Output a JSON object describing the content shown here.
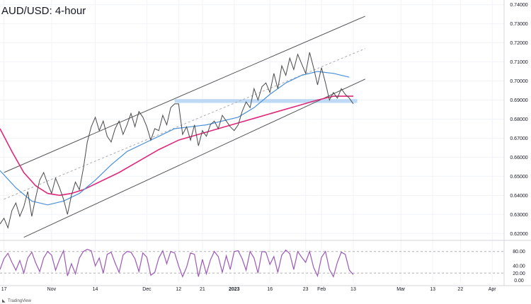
{
  "chart_data": {
    "type": "line",
    "title": "AUD/USD: 4-hour",
    "watermark": "TradingView",
    "colors": {
      "price": "#4a4a4a",
      "ma_fast": "#4a90d9",
      "ma_slow": "#e0287a",
      "channel": "#555555",
      "zone": "#a9cdf2",
      "oscillator": "#9b59b6",
      "midline": "#b0b0b0"
    },
    "price_axis": {
      "range": [
        0.6175,
        0.7425
      ],
      "ticks": [
        {
          "value": 0.74,
          "label": "0.74000"
        },
        {
          "value": 0.73,
          "label": "0.73000"
        },
        {
          "value": 0.72,
          "label": "0.72000"
        },
        {
          "value": 0.71,
          "label": "0.71000"
        },
        {
          "value": 0.7,
          "label": "0.70000"
        },
        {
          "value": 0.69,
          "label": "0.69000"
        },
        {
          "value": 0.68,
          "label": "0.68000"
        },
        {
          "value": 0.67,
          "label": "0.67000"
        },
        {
          "value": 0.66,
          "label": "0.66000"
        },
        {
          "value": 0.65,
          "label": "0.65000"
        },
        {
          "value": 0.64,
          "label": "0.64000"
        },
        {
          "value": 0.63,
          "label": "0.63000"
        },
        {
          "value": 0.62,
          "label": "0.62000"
        }
      ]
    },
    "oscillator_axis": {
      "range": [
        -5,
        105
      ],
      "ticks": [
        {
          "value": 80,
          "label": "80.00"
        },
        {
          "value": 40,
          "label": "40.00"
        },
        {
          "value": 20,
          "label": "20.00"
        },
        {
          "value": 0,
          "label": "0.00"
        }
      ],
      "bands": [
        80,
        20
      ]
    },
    "x_axis": {
      "range": [
        0,
        127
      ],
      "ticks": [
        {
          "x": 1,
          "label": "17",
          "bold": false
        },
        {
          "x": 13,
          "label": "Nov",
          "bold": false
        },
        {
          "x": 24,
          "label": "14",
          "bold": false
        },
        {
          "x": 37,
          "label": "Dec",
          "bold": false
        },
        {
          "x": 45,
          "label": "12",
          "bold": false
        },
        {
          "x": 51,
          "label": "21",
          "bold": false
        },
        {
          "x": 59,
          "label": "2023",
          "bold": true
        },
        {
          "x": 68,
          "label": "16",
          "bold": false
        },
        {
          "x": 77,
          "label": "23",
          "bold": false
        },
        {
          "x": 81,
          "label": "Feb",
          "bold": false
        },
        {
          "x": 89,
          "label": "13",
          "bold": false
        },
        {
          "x": 101,
          "label": "Mar",
          "bold": false
        },
        {
          "x": 109,
          "label": "13",
          "bold": false
        },
        {
          "x": 116,
          "label": "22",
          "bold": false
        },
        {
          "x": 124,
          "label": "Apr",
          "bold": false
        }
      ]
    },
    "price": [
      [
        0,
        0.625
      ],
      [
        1,
        0.628
      ],
      [
        2,
        0.623
      ],
      [
        3,
        0.632
      ],
      [
        4,
        0.636
      ],
      [
        5,
        0.629
      ],
      [
        6,
        0.634
      ],
      [
        7,
        0.642
      ],
      [
        8,
        0.629
      ],
      [
        9,
        0.639
      ],
      [
        10,
        0.648
      ],
      [
        11,
        0.652
      ],
      [
        12,
        0.646
      ],
      [
        13,
        0.641
      ],
      [
        14,
        0.649
      ],
      [
        15,
        0.644
      ],
      [
        16,
        0.638
      ],
      [
        17,
        0.63
      ],
      [
        18,
        0.64
      ],
      [
        19,
        0.647
      ],
      [
        20,
        0.643
      ],
      [
        21,
        0.654
      ],
      [
        22,
        0.668
      ],
      [
        23,
        0.676
      ],
      [
        24,
        0.681
      ],
      [
        25,
        0.674
      ],
      [
        26,
        0.679
      ],
      [
        27,
        0.671
      ],
      [
        28,
        0.668
      ],
      [
        29,
        0.675
      ],
      [
        30,
        0.679
      ],
      [
        31,
        0.672
      ],
      [
        32,
        0.677
      ],
      [
        33,
        0.683
      ],
      [
        34,
        0.676
      ],
      [
        35,
        0.684
      ],
      [
        36,
        0.681
      ],
      [
        37,
        0.676
      ],
      [
        38,
        0.669
      ],
      [
        39,
        0.675
      ],
      [
        40,
        0.674
      ],
      [
        41,
        0.682
      ],
      [
        42,
        0.677
      ],
      [
        43,
        0.686
      ],
      [
        44,
        0.688
      ],
      [
        45,
        0.688
      ],
      [
        46,
        0.672
      ],
      [
        47,
        0.676
      ],
      [
        48,
        0.669
      ],
      [
        49,
        0.677
      ],
      [
        50,
        0.666
      ],
      [
        51,
        0.674
      ],
      [
        52,
        0.671
      ],
      [
        53,
        0.677
      ],
      [
        54,
        0.679
      ],
      [
        55,
        0.675
      ],
      [
        56,
        0.682
      ],
      [
        57,
        0.679
      ],
      [
        58,
        0.676
      ],
      [
        59,
        0.674
      ],
      [
        60,
        0.677
      ],
      [
        61,
        0.684
      ],
      [
        62,
        0.689
      ],
      [
        63,
        0.686
      ],
      [
        64,
        0.696
      ],
      [
        65,
        0.69
      ],
      [
        66,
        0.697
      ],
      [
        67,
        0.699
      ],
      [
        68,
        0.694
      ],
      [
        69,
        0.704
      ],
      [
        70,
        0.696
      ],
      [
        71,
        0.708
      ],
      [
        72,
        0.703
      ],
      [
        73,
        0.712
      ],
      [
        74,
        0.706
      ],
      [
        75,
        0.714
      ],
      [
        76,
        0.709
      ],
      [
        77,
        0.704
      ],
      [
        78,
        0.715
      ],
      [
        79,
        0.707
      ],
      [
        80,
        0.698
      ],
      [
        81,
        0.707
      ],
      [
        82,
        0.699
      ],
      [
        83,
        0.69
      ],
      [
        84,
        0.694
      ],
      [
        85,
        0.691
      ],
      [
        86,
        0.696
      ],
      [
        87,
        0.693
      ],
      [
        88,
        0.691
      ],
      [
        89,
        0.688
      ]
    ],
    "ma_fast": [
      [
        0,
        0.653
      ],
      [
        4,
        0.644
      ],
      [
        8,
        0.637
      ],
      [
        12,
        0.635
      ],
      [
        16,
        0.637
      ],
      [
        20,
        0.641
      ],
      [
        24,
        0.648
      ],
      [
        28,
        0.656
      ],
      [
        32,
        0.663
      ],
      [
        36,
        0.667
      ],
      [
        40,
        0.671
      ],
      [
        44,
        0.675
      ],
      [
        48,
        0.676
      ],
      [
        52,
        0.677
      ],
      [
        56,
        0.679
      ],
      [
        60,
        0.681
      ],
      [
        64,
        0.686
      ],
      [
        68,
        0.693
      ],
      [
        72,
        0.699
      ],
      [
        76,
        0.703
      ],
      [
        80,
        0.705
      ],
      [
        84,
        0.704
      ],
      [
        88,
        0.702
      ]
    ],
    "ma_slow": [
      [
        0,
        0.675
      ],
      [
        3,
        0.663
      ],
      [
        6,
        0.652
      ],
      [
        9,
        0.645
      ],
      [
        12,
        0.641
      ],
      [
        15,
        0.64
      ],
      [
        18,
        0.641
      ],
      [
        21,
        0.643
      ],
      [
        25,
        0.647
      ],
      [
        30,
        0.652
      ],
      [
        35,
        0.658
      ],
      [
        40,
        0.664
      ],
      [
        45,
        0.669
      ],
      [
        50,
        0.672
      ],
      [
        55,
        0.675
      ],
      [
        60,
        0.678
      ],
      [
        65,
        0.681
      ],
      [
        70,
        0.684
      ],
      [
        75,
        0.687
      ],
      [
        80,
        0.69
      ],
      [
        84,
        0.692
      ],
      [
        89,
        0.692
      ]
    ],
    "channel_upper": [
      [
        1,
        0.652
      ],
      [
        92,
        0.734
      ]
    ],
    "channel_mid": [
      [
        1,
        0.638
      ],
      [
        92,
        0.717
      ]
    ],
    "channel_lower": [
      [
        6,
        0.618
      ],
      [
        92,
        0.701
      ]
    ],
    "zone": {
      "x_start": 44,
      "x_end": 90,
      "y_low": 0.6885,
      "y_high": 0.6905
    },
    "oscillator": [
      [
        0,
        30
      ],
      [
        1,
        60
      ],
      [
        2,
        75
      ],
      [
        3,
        50
      ],
      [
        4,
        28
      ],
      [
        5,
        55
      ],
      [
        6,
        20
      ],
      [
        7,
        62
      ],
      [
        8,
        78
      ],
      [
        9,
        48
      ],
      [
        10,
        24
      ],
      [
        11,
        62
      ],
      [
        12,
        80
      ],
      [
        13,
        70
      ],
      [
        14,
        28
      ],
      [
        15,
        58
      ],
      [
        16,
        82
      ],
      [
        17,
        12
      ],
      [
        18,
        46
      ],
      [
        19,
        18
      ],
      [
        20,
        62
      ],
      [
        21,
        80
      ],
      [
        22,
        86
      ],
      [
        23,
        82
      ],
      [
        24,
        40
      ],
      [
        25,
        62
      ],
      [
        26,
        20
      ],
      [
        27,
        72
      ],
      [
        28,
        78
      ],
      [
        29,
        48
      ],
      [
        30,
        22
      ],
      [
        31,
        70
      ],
      [
        32,
        80
      ],
      [
        33,
        78
      ],
      [
        34,
        60
      ],
      [
        35,
        24
      ],
      [
        36,
        76
      ],
      [
        37,
        64
      ],
      [
        38,
        14
      ],
      [
        39,
        22
      ],
      [
        40,
        62
      ],
      [
        41,
        82
      ],
      [
        42,
        46
      ],
      [
        43,
        80
      ],
      [
        44,
        76
      ],
      [
        45,
        40
      ],
      [
        46,
        10
      ],
      [
        47,
        36
      ],
      [
        48,
        76
      ],
      [
        49,
        72
      ],
      [
        50,
        10
      ],
      [
        51,
        58
      ],
      [
        52,
        18
      ],
      [
        53,
        56
      ],
      [
        54,
        80
      ],
      [
        55,
        66
      ],
      [
        56,
        22
      ],
      [
        57,
        68
      ],
      [
        58,
        30
      ],
      [
        59,
        80
      ],
      [
        60,
        82
      ],
      [
        61,
        60
      ],
      [
        62,
        28
      ],
      [
        63,
        80
      ],
      [
        64,
        62
      ],
      [
        65,
        20
      ],
      [
        66,
        80
      ],
      [
        67,
        78
      ],
      [
        68,
        44
      ],
      [
        69,
        66
      ],
      [
        70,
        22
      ],
      [
        71,
        70
      ],
      [
        72,
        84
      ],
      [
        73,
        74
      ],
      [
        74,
        30
      ],
      [
        75,
        80
      ],
      [
        76,
        64
      ],
      [
        77,
        50
      ],
      [
        78,
        80
      ],
      [
        79,
        36
      ],
      [
        80,
        12
      ],
      [
        81,
        64
      ],
      [
        82,
        80
      ],
      [
        83,
        30
      ],
      [
        84,
        10
      ],
      [
        85,
        50
      ],
      [
        86,
        78
      ],
      [
        87,
        72
      ],
      [
        88,
        28
      ],
      [
        89,
        16
      ]
    ]
  }
}
